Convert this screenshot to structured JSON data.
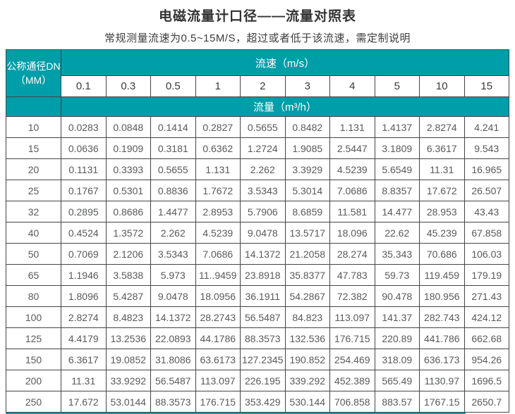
{
  "page": {
    "title": "电磁流量计口径——流量对照表",
    "subtitle": "常规测量流速为0.5~15M/S，超过或者低于该流速，需定制说明"
  },
  "colors": {
    "teal": "#009EA8",
    "grid-border": "#454545",
    "title-text": "#333333",
    "cell-text": "#58595b"
  },
  "chart_data": {
    "type": "table",
    "corner_header_line1": "公称通径DN",
    "corner_header_line2": "（MM）",
    "velocity_header": "流速（m/s）",
    "flow_header": "流量（m³/h）",
    "velocities": [
      "0.1",
      "0.3",
      "0.5",
      "1",
      "2",
      "3",
      "4",
      "5",
      "10",
      "15"
    ],
    "rows": [
      {
        "dn": "10",
        "values": [
          "0.0283",
          "0.0848",
          "0.1414",
          "0.2827",
          "0.5655",
          "0.8482",
          "1.131",
          "1.4137",
          "2.8274",
          "4.241"
        ]
      },
      {
        "dn": "15",
        "values": [
          "0.0636",
          "0.1909",
          "0.3181",
          "0.6362",
          "1.2724",
          "1.9085",
          "2.5447",
          "3.1809",
          "6.3617",
          "9.543"
        ]
      },
      {
        "dn": "20",
        "values": [
          "0.1131",
          "0.3393",
          "0.5655",
          "1.131",
          "2.262",
          "3.3929",
          "4.5239",
          "5.6549",
          "11.31",
          "16.965"
        ]
      },
      {
        "dn": "25",
        "values": [
          "0.1767",
          "0.5301",
          "0.8836",
          "1.7672",
          "3.5343",
          "5.3014",
          "7.0686",
          "8.8357",
          "17.672",
          "26.507"
        ]
      },
      {
        "dn": "32",
        "values": [
          "0.2895",
          "0.8686",
          "1.4477",
          "2.8953",
          "5.7906",
          "8.6859",
          "11.581",
          "14.477",
          "28.953",
          "43.43"
        ]
      },
      {
        "dn": "40",
        "values": [
          "0.4524",
          "1.3572",
          "2.262",
          "4.5239",
          "9.0478",
          "13.5717",
          "18.096",
          "22.62",
          "45.239",
          "67.858"
        ]
      },
      {
        "dn": "50",
        "values": [
          "0.7069",
          "2.1206",
          "3.5343",
          "7.0686",
          "14.1372",
          "21.2058",
          "28.274",
          "35.343",
          "70.686",
          "106.03"
        ]
      },
      {
        "dn": "65",
        "values": [
          "1.1946",
          "3.5838",
          "5.973",
          "11..9459",
          "23.8918",
          "35.8377",
          "47.783",
          "59.73",
          "119.459",
          "179.19"
        ]
      },
      {
        "dn": "80",
        "values": [
          "1.8096",
          "5.4287",
          "9.0478",
          "18.0956",
          "36.1911",
          "54.2867",
          "72.382",
          "90.478",
          "180.956",
          "271.43"
        ]
      },
      {
        "dn": "100",
        "values": [
          "2.8274",
          "8.4823",
          "14.1372",
          "28.2743",
          "56.5487",
          "84.823",
          "113.097",
          "141.37",
          "282.743",
          "424.12"
        ]
      },
      {
        "dn": "125",
        "values": [
          "4.4179",
          "13.2536",
          "22.0893",
          "44.1786",
          "88.3573",
          "132.536",
          "176.715",
          "220.89",
          "441.786",
          "662.68"
        ]
      },
      {
        "dn": "150",
        "values": [
          "6.3617",
          "19.0852",
          "31.8086",
          "63.6173",
          "127.2345",
          "190.852",
          "254.469",
          "318.09",
          "636.173",
          "954.26"
        ]
      },
      {
        "dn": "200",
        "values": [
          "11.31",
          "33.9292",
          "56.5487",
          "113.097",
          "226.195",
          "339.292",
          "452.389",
          "565.49",
          "1130.97",
          "1696.5"
        ]
      },
      {
        "dn": "250",
        "values": [
          "17.672",
          "53.0144",
          "88.3573",
          "176.715",
          "353.429",
          "530.144",
          "706.858",
          "883.57",
          "1767.15",
          "2650.7"
        ]
      }
    ]
  }
}
